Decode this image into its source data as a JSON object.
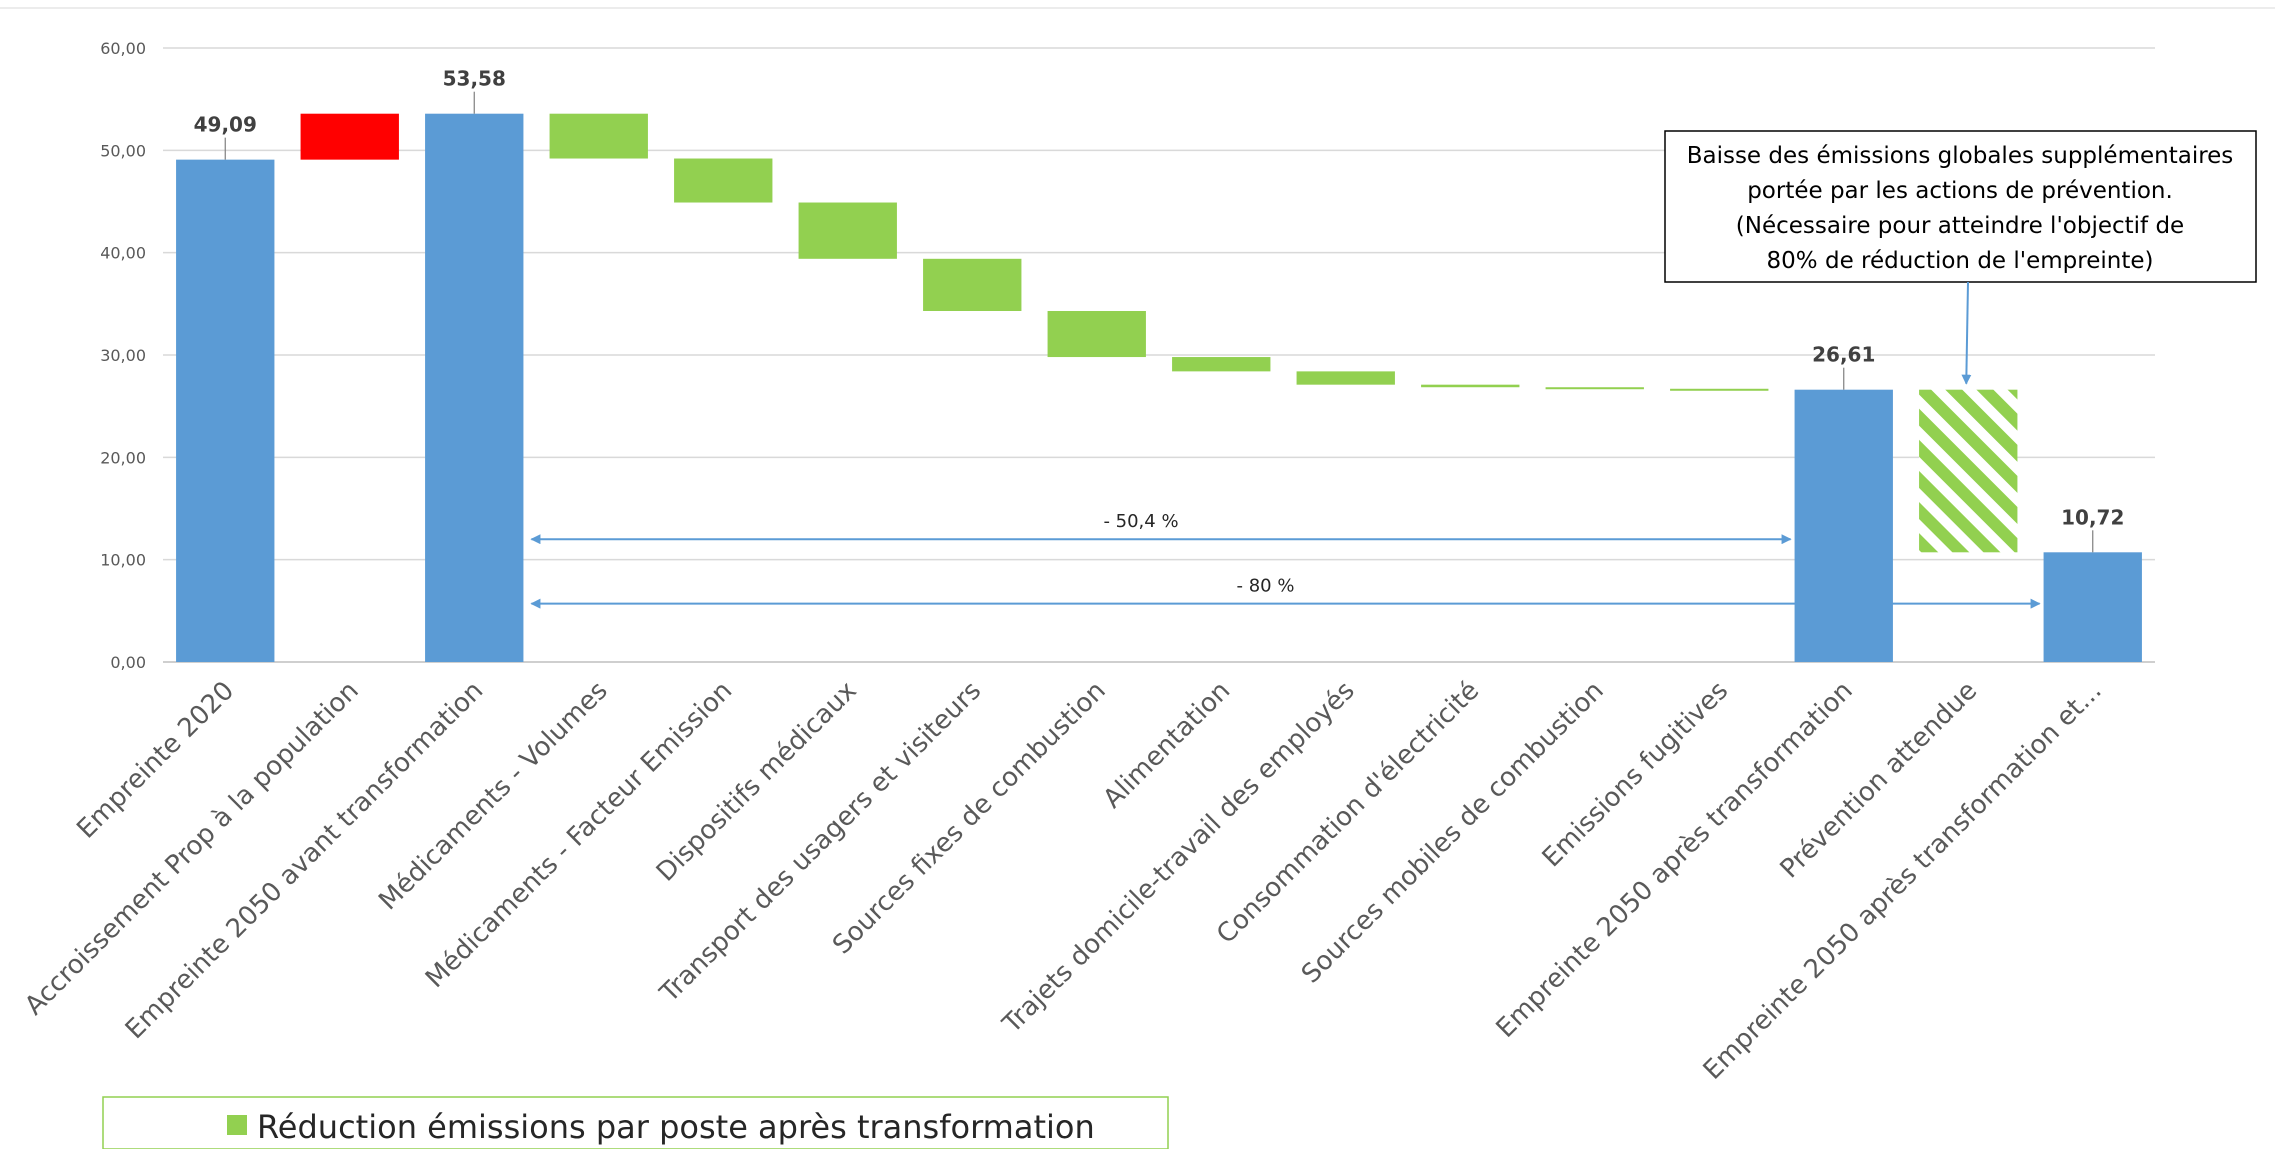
{
  "chart_data": {
    "type": "bar",
    "ylim": [
      0,
      60
    ],
    "yticks": [
      "0,00",
      "10,00",
      "20,00",
      "30,00",
      "40,00",
      "50,00",
      "60,00"
    ],
    "grid": true,
    "categories": [
      "Empreinte 2020",
      "Accroissement Prop à la population",
      "Empreinte 2050 avant transformation",
      "Médicaments - Volumes",
      "Médicaments - Facteur Emission",
      "Dispositifs médicaux",
      "Transport des usagers et visiteurs",
      "Sources fixes de combustion",
      "Alimentation",
      "Trajets domicile-travail des employés",
      "Consommation d'électricité",
      "Sources mobiles de combustion",
      "Emissions fugitives",
      "Empreinte 2050 après transformation",
      "Prévention attendue",
      "Empreinte 2050 après transformation et..."
    ],
    "bars": [
      {
        "kind": "total",
        "base": 0,
        "top": 49.09,
        "label": "49,09"
      },
      {
        "kind": "increase",
        "base": 49.09,
        "top": 53.58
      },
      {
        "kind": "total",
        "base": 0,
        "top": 53.58,
        "label": "53,58"
      },
      {
        "kind": "reduction",
        "base": 49.2,
        "top": 53.58
      },
      {
        "kind": "reduction",
        "base": 44.9,
        "top": 49.2
      },
      {
        "kind": "reduction",
        "base": 39.4,
        "top": 44.9
      },
      {
        "kind": "reduction",
        "base": 34.3,
        "top": 39.4
      },
      {
        "kind": "reduction",
        "base": 29.8,
        "top": 34.3
      },
      {
        "kind": "reduction",
        "base": 28.4,
        "top": 29.8
      },
      {
        "kind": "reduction",
        "base": 27.1,
        "top": 28.4
      },
      {
        "kind": "reduction",
        "base": 26.85,
        "top": 27.1
      },
      {
        "kind": "reduction",
        "base": 26.7,
        "top": 26.85
      },
      {
        "kind": "reduction",
        "base": 26.61,
        "top": 26.7
      },
      {
        "kind": "total",
        "base": 0,
        "top": 26.61,
        "label": "26,61"
      },
      {
        "kind": "prevention",
        "base": 10.72,
        "top": 26.61
      },
      {
        "kind": "total",
        "base": 0,
        "top": 10.72,
        "label": "10,72"
      }
    ],
    "colors": {
      "total": "#5B9BD5",
      "increase": "#FF0000",
      "reduction": "#92D050",
      "prevention": "#92D050",
      "arrow": "#5B9BD5",
      "grid": "#D9D9D9",
      "axis": "#BFBFBF"
    },
    "arrows": [
      {
        "label": "- 50,4 %",
        "from_category": 2,
        "to_category": 13,
        "y": 12.0
      },
      {
        "label": "- 80 %",
        "from_category": 2,
        "to_category": 15,
        "y": 5.7
      }
    ],
    "annotation": {
      "lines": [
        "Baisse des émissions globales supplémentaires",
        "portée par les actions de prévention.",
        "(Nécessaire pour atteindre l'objectif de",
        "80% de réduction de l'empreinte)"
      ],
      "points_to_category": 14
    },
    "legend": {
      "label": "Réduction émissions par poste après transformation",
      "color": "#92D050",
      "position": "bottom-left"
    }
  }
}
